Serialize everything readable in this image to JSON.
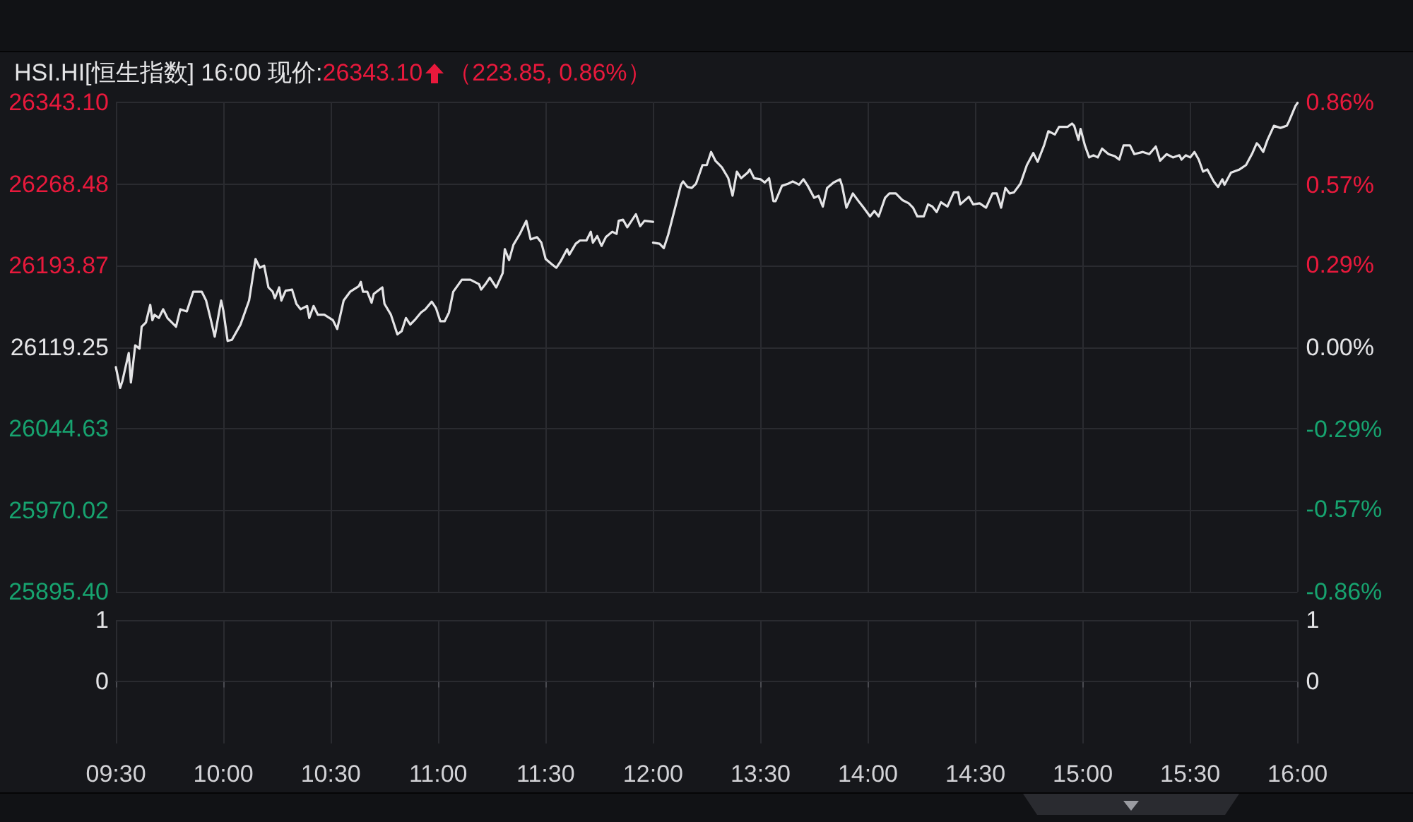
{
  "chart_data": [
    {
      "type": "line",
      "title": "HSI.HI[恒生指数] 16:00 现价:",
      "subtitle": "26343.10",
      "annotations": [
        "（223.85, 0.86%）"
      ],
      "x": [
        9.5,
        9.52,
        9.53,
        9.56,
        9.57,
        9.59,
        9.61,
        9.62,
        9.64,
        9.66,
        9.67,
        9.68,
        9.7,
        9.72,
        9.74,
        9.78,
        9.8,
        9.83,
        9.86,
        9.9,
        9.92,
        9.94,
        9.96,
        9.99,
        10.0,
        10.02,
        10.04,
        10.08,
        10.12,
        10.15,
        10.17,
        10.19,
        10.21,
        10.23,
        10.24,
        10.26,
        10.27,
        10.29,
        10.32,
        10.34,
        10.36,
        10.39,
        10.4,
        10.42,
        10.44,
        10.47,
        10.51,
        10.53,
        10.56,
        10.59,
        10.63,
        10.64,
        10.65,
        10.67,
        10.69,
        10.7,
        10.74,
        10.75,
        10.78,
        10.81,
        10.83,
        10.85,
        10.87,
        10.89,
        10.92,
        10.94,
        10.97,
        10.99,
        11.01,
        11.03,
        11.05,
        11.07,
        11.11,
        11.15,
        11.19,
        11.2,
        11.22,
        11.24,
        11.27,
        11.3,
        11.31,
        11.33,
        11.35,
        11.38,
        11.41,
        11.43,
        11.46,
        11.48,
        11.5,
        11.53,
        11.55,
        11.57,
        11.6,
        11.61,
        11.64,
        11.66,
        11.69,
        11.71,
        11.72,
        11.74,
        11.76,
        11.78,
        11.81,
        11.83,
        11.84,
        11.86,
        11.88,
        11.9,
        11.92,
        11.94,
        11.96,
        12.0
      ],
      "series": [
        {
          "color": "#e4e4e6",
          "values": [
            26101,
            26082,
            26088,
            26114,
            26087,
            26121,
            26118,
            26138,
            26142,
            26158,
            26144,
            26149,
            26146,
            26154,
            26146,
            26138,
            26154,
            26152,
            26170,
            26170,
            26162,
            26146,
            26129,
            26162,
            26153,
            26125,
            26126,
            26140,
            26162,
            26200,
            26192,
            26194,
            26174,
            26170,
            26164,
            26174,
            26162,
            26171,
            26172,
            26159,
            26154,
            26157,
            26146,
            26157,
            26149,
            26149,
            26144,
            26136,
            26162,
            26170,
            26175,
            26179,
            26170,
            26170,
            26160,
            26168,
            26174,
            26159,
            26149,
            26131,
            26134,
            26146,
            26140,
            26144,
            26151,
            26154,
            26161,
            26155,
            26143,
            26143,
            26151,
            26170,
            26181,
            26181,
            26177,
            26172,
            26177,
            26183,
            26174,
            26187,
            26209,
            26199,
            26213,
            26223,
            26235,
            26218,
            26220,
            26215,
            26200,
            26195,
            26192,
            26198,
            26209,
            26204,
            26214,
            26217,
            26217,
            26225,
            26215,
            26221,
            26212,
            26220,
            26225,
            26223,
            26235,
            26236,
            26229,
            26235,
            26241,
            26230,
            26235,
            26234
          ]
        }
      ],
      "xlim": [
        9.5,
        12
      ],
      "xticks": [
        9.5,
        10,
        10.5,
        11,
        11.5,
        12
      ],
      "ylim": [
        25895.4,
        26343.1
      ],
      "yticks": [
        {
          "value": 25895.4,
          "label": "25895.40"
        },
        {
          "value": 25970.02,
          "label": "25970.02"
        },
        {
          "value": 26044.63,
          "label": "26044.63"
        },
        {
          "value": 26119.25,
          "label": "26119.25"
        },
        {
          "value": 26193.87,
          "label": "26193.87"
        },
        {
          "value": 26268.48,
          "label": "26268.48"
        },
        {
          "value": 26343.1,
          "label": "26343.10"
        }
      ],
      "tick_labels": "y",
      "grid": true
    },
    {
      "type": "line",
      "x": [
        13.0,
        13.03,
        13.05,
        13.07,
        13.1,
        13.13,
        13.14,
        13.16,
        13.18,
        13.2,
        13.23,
        13.25,
        13.27,
        13.29,
        13.32,
        13.35,
        13.37,
        13.39,
        13.41,
        13.44,
        13.45,
        13.47,
        13.5,
        13.52,
        13.54,
        13.56,
        13.57,
        13.6,
        13.63,
        13.65,
        13.68,
        13.7,
        13.72,
        13.75,
        13.77,
        13.79,
        13.81,
        13.84,
        13.87,
        13.88,
        13.9,
        13.93,
        13.96,
        13.98,
        14.01,
        14.03,
        14.05,
        14.08,
        14.1,
        14.13,
        14.16,
        14.19,
        14.21,
        14.23,
        14.26,
        14.28,
        14.3,
        14.32,
        14.34,
        14.37,
        14.4,
        14.42,
        14.43,
        14.47,
        14.49,
        14.52,
        14.55,
        14.58,
        14.6,
        14.62,
        14.64,
        14.66,
        14.68,
        14.71,
        14.74,
        14.77,
        14.79,
        14.82,
        14.84,
        14.87,
        14.89,
        14.93,
        14.95,
        14.96,
        14.98,
        14.99,
        15.01,
        15.03,
        15.05,
        15.07,
        15.09,
        15.12,
        15.15,
        15.17,
        15.19,
        15.22,
        15.24,
        15.28,
        15.31,
        15.34,
        15.36,
        15.39,
        15.42,
        15.45,
        15.46,
        15.48,
        15.5,
        15.52,
        15.54,
        15.56,
        15.58,
        15.61,
        15.63,
        15.65,
        15.66,
        15.69,
        15.73,
        15.76,
        15.79,
        15.81,
        15.82,
        15.84,
        15.86,
        15.89,
        15.92,
        15.95,
        15.96,
        15.99,
        16.0
      ],
      "series": [
        {
          "color": "#e4e4e6",
          "values": [
            26215,
            26214,
            26210,
            26222,
            26245,
            26268,
            26271,
            26266,
            26265,
            26269,
            26286,
            26286,
            26298,
            26290,
            26284,
            26274,
            26258,
            26280,
            26274,
            26279,
            26282,
            26274,
            26273,
            26270,
            26274,
            26253,
            26253,
            26267,
            26269,
            26271,
            26268,
            26273,
            26267,
            26256,
            26258,
            26248,
            26265,
            26270,
            26273,
            26267,
            26247,
            26260,
            26252,
            26247,
            26239,
            26244,
            26239,
            26256,
            26260,
            26260,
            26254,
            26251,
            26247,
            26239,
            26239,
            26250,
            26248,
            26243,
            26252,
            26248,
            26261,
            26261,
            26250,
            26257,
            26250,
            26251,
            26247,
            26260,
            26260,
            26247,
            26265,
            26260,
            26261,
            26269,
            26286,
            26297,
            26289,
            26304,
            26317,
            26314,
            26321,
            26321,
            26324,
            26322,
            26309,
            26319,
            26304,
            26293,
            26295,
            26293,
            26301,
            26296,
            26294,
            26291,
            26304,
            26304,
            26296,
            26298,
            26296,
            26303,
            26290,
            26296,
            26293,
            26295,
            26291,
            26295,
            26293,
            26298,
            26291,
            26280,
            26282,
            26271,
            26266,
            26273,
            26268,
            26279,
            26282,
            26286,
            26297,
            26306,
            26304,
            26298,
            26309,
            26322,
            26320,
            26322,
            26326,
            26340,
            26343
          ]
        }
      ],
      "xlim": [
        13,
        16
      ],
      "xticks": [
        13.5,
        14,
        14.5,
        15,
        15.5,
        16
      ],
      "ylim": [
        25895.4,
        26343.1
      ],
      "yticks": [
        25895.4,
        25970.02,
        26044.63,
        26119.25,
        26193.87,
        26268.48,
        26343.1
      ],
      "y2lim": [
        -0.86,
        0.86
      ],
      "y2ticks": [
        {
          "value": -0.86,
          "label": "-0.86%"
        },
        {
          "value": -0.57,
          "label": "-0.57%"
        },
        {
          "value": -0.29,
          "label": "-0.29%"
        },
        {
          "value": 0,
          "label": "0.00%"
        },
        {
          "value": 0.29,
          "label": "0.29%"
        },
        {
          "value": 0.57,
          "label": "0.57%"
        },
        {
          "value": 0.86,
          "label": "0.86%"
        }
      ],
      "tick_labels": false,
      "grid": true
    },
    {
      "type": "bar",
      "xlim": [
        9.5,
        12
      ],
      "xticks": [
        {
          "value": 9.5,
          "label": "09:30"
        },
        {
          "value": 10,
          "label": "10:00"
        },
        {
          "value": 10.5,
          "label": "10:30"
        },
        {
          "value": 11,
          "label": "11:00"
        },
        {
          "value": 11.5,
          "label": "11:30"
        },
        {
          "value": 12,
          "label": "12:00"
        }
      ],
      "ylim": [
        -1,
        1
      ],
      "yticks": [
        0,
        1
      ],
      "grid": true
    },
    {
      "type": "bar",
      "xlim": [
        13,
        16
      ],
      "xticks": [
        {
          "value": 13.5,
          "label": "13:30"
        },
        {
          "value": 14,
          "label": "14:00"
        },
        {
          "value": 14.5,
          "label": "14:30"
        },
        {
          "value": 15,
          "label": "15:00"
        },
        {
          "value": 15.5,
          "label": "15:30"
        },
        {
          "value": 16,
          "label": "16:00"
        }
      ],
      "y2lim": [
        -1,
        1
      ],
      "y2ticks": [
        0,
        1
      ],
      "grid": true
    }
  ]
}
